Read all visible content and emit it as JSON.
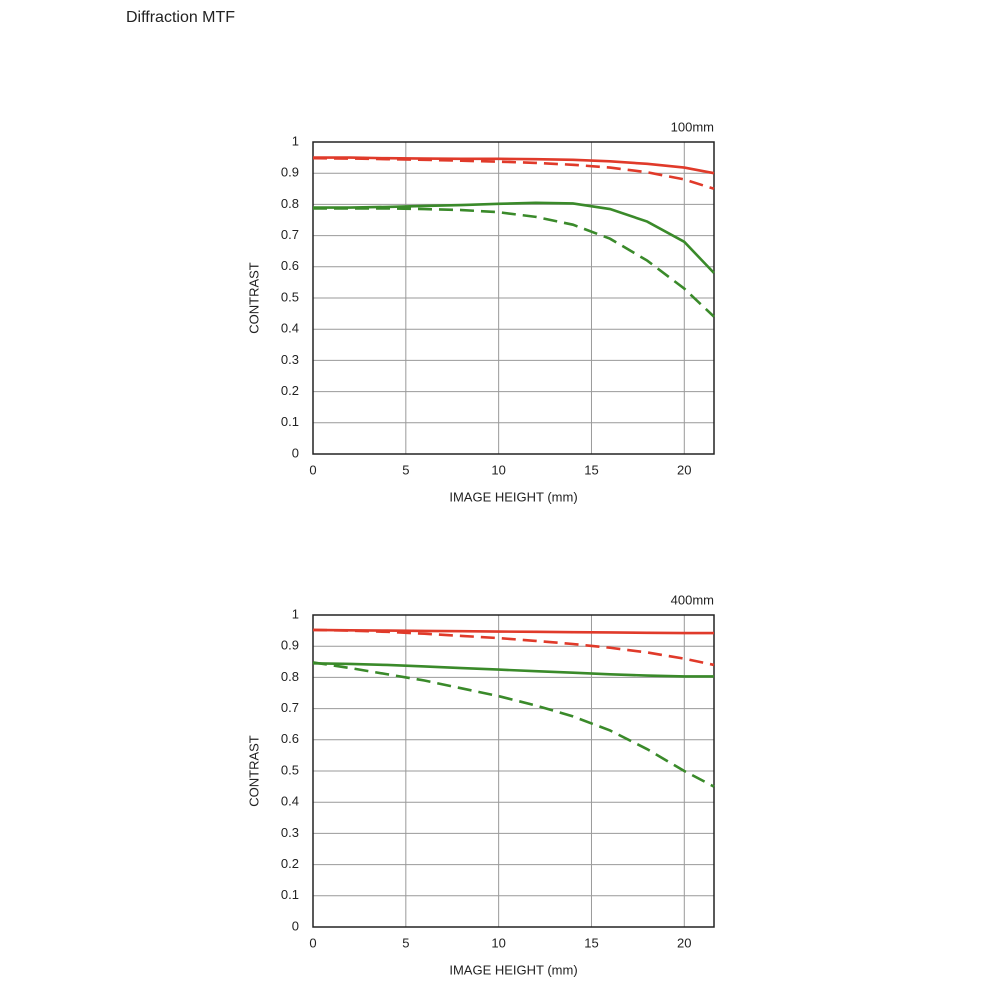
{
  "title": "Diffraction MTF",
  "chart_data": [
    {
      "type": "line",
      "title": "100mm",
      "xlabel": "IMAGE HEIGHT (mm)",
      "ylabel": "CONTRAST",
      "x": [
        0,
        2,
        4,
        6,
        8,
        10,
        12,
        14,
        16,
        18,
        20,
        21.6
      ],
      "xlim": [
        0,
        21.6
      ],
      "xticks": [
        0,
        5,
        10,
        15,
        20
      ],
      "ylim": [
        0,
        1
      ],
      "yticks": [
        0,
        0.1,
        0.2,
        0.3,
        0.4,
        0.5,
        0.6,
        0.7,
        0.8,
        0.9,
        1
      ],
      "grid": true,
      "series": [
        {
          "color": "#e03a2a",
          "dashed": false,
          "values": [
            0.95,
            0.95,
            0.948,
            0.947,
            0.946,
            0.946,
            0.945,
            0.943,
            0.938,
            0.93,
            0.918,
            0.9
          ]
        },
        {
          "color": "#e03a2a",
          "dashed": true,
          "values": [
            0.948,
            0.947,
            0.945,
            0.943,
            0.94,
            0.937,
            0.933,
            0.927,
            0.918,
            0.903,
            0.88,
            0.85
          ]
        },
        {
          "color": "#3a8a2a",
          "dashed": false,
          "values": [
            0.79,
            0.79,
            0.792,
            0.795,
            0.798,
            0.802,
            0.805,
            0.803,
            0.785,
            0.745,
            0.68,
            0.58
          ]
        },
        {
          "color": "#3a8a2a",
          "dashed": true,
          "values": [
            0.787,
            0.787,
            0.787,
            0.785,
            0.782,
            0.775,
            0.76,
            0.735,
            0.69,
            0.62,
            0.53,
            0.44
          ]
        }
      ]
    },
    {
      "type": "line",
      "title": "400mm",
      "xlabel": "IMAGE HEIGHT (mm)",
      "ylabel": "CONTRAST",
      "x": [
        0,
        2,
        4,
        6,
        8,
        10,
        12,
        14,
        16,
        18,
        20,
        21.6
      ],
      "xlim": [
        0,
        21.6
      ],
      "xticks": [
        0,
        5,
        10,
        15,
        20
      ],
      "ylim": [
        0,
        1
      ],
      "yticks": [
        0,
        0.1,
        0.2,
        0.3,
        0.4,
        0.5,
        0.6,
        0.7,
        0.8,
        0.9,
        1
      ],
      "grid": true,
      "series": [
        {
          "color": "#e03a2a",
          "dashed": false,
          "values": [
            0.952,
            0.951,
            0.95,
            0.949,
            0.948,
            0.947,
            0.946,
            0.945,
            0.944,
            0.943,
            0.942,
            0.942
          ]
        },
        {
          "color": "#e03a2a",
          "dashed": true,
          "values": [
            0.952,
            0.95,
            0.946,
            0.94,
            0.933,
            0.926,
            0.917,
            0.907,
            0.895,
            0.88,
            0.86,
            0.84
          ]
        },
        {
          "color": "#3a8a2a",
          "dashed": false,
          "values": [
            0.845,
            0.843,
            0.84,
            0.835,
            0.83,
            0.825,
            0.82,
            0.815,
            0.81,
            0.806,
            0.803,
            0.803
          ]
        },
        {
          "color": "#3a8a2a",
          "dashed": true,
          "values": [
            0.848,
            0.83,
            0.81,
            0.79,
            0.765,
            0.74,
            0.71,
            0.675,
            0.63,
            0.57,
            0.5,
            0.45
          ]
        }
      ]
    }
  ]
}
